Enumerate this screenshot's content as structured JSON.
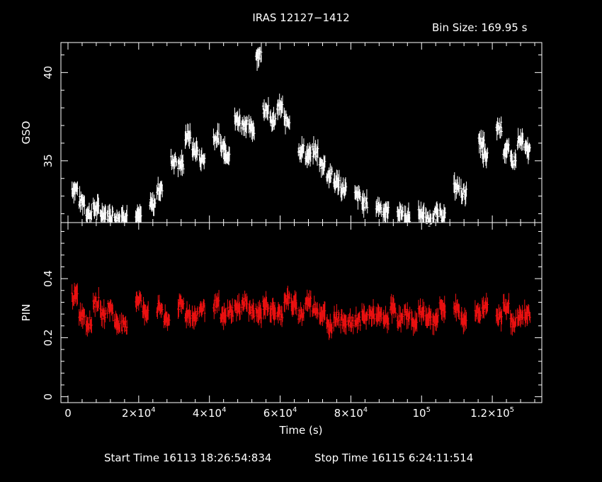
{
  "chart_data": {
    "type": "scatter",
    "title": "IRAS 12127−1412",
    "bin_size": "Bin Size: 169.95 s",
    "xlabel": "Time (s)",
    "xlim": [
      -2000,
      134000
    ],
    "x_ticks": [
      {
        "value": 0,
        "label": "0"
      },
      {
        "value": 20000,
        "label": "2×10",
        "exp": "4"
      },
      {
        "value": 40000,
        "label": "4×10",
        "exp": "4"
      },
      {
        "value": 60000,
        "label": "6×10",
        "exp": "4"
      },
      {
        "value": 80000,
        "label": "8×10",
        "exp": "4"
      },
      {
        "value": 100000,
        "label": "10",
        "exp": "5"
      },
      {
        "value": 120000,
        "label": "1.2×10",
        "exp": "5"
      }
    ],
    "panels": [
      {
        "name": "GSO",
        "ylabel": "GSO",
        "ylim": [
          31.5,
          41.7
        ],
        "y_ticks": [
          {
            "value": 35,
            "label": "35"
          },
          {
            "value": 40,
            "label": "40"
          }
        ],
        "color": "#ffffff",
        "points": [
          [
            2000,
            33.4
          ],
          [
            4000,
            32.7
          ],
          [
            6000,
            32.0
          ],
          [
            8000,
            32.3
          ],
          [
            10000,
            32.0
          ],
          [
            12000,
            31.9
          ],
          [
            14000,
            31.8
          ],
          [
            16000,
            31.9
          ],
          [
            20000,
            31.8
          ],
          [
            24000,
            32.5
          ],
          [
            26000,
            33.4
          ],
          [
            30000,
            35.0
          ],
          [
            32000,
            34.8
          ],
          [
            34000,
            36.4
          ],
          [
            36000,
            35.6
          ],
          [
            38000,
            35.1
          ],
          [
            42000,
            36.3
          ],
          [
            44000,
            35.8
          ],
          [
            45000,
            35.4
          ],
          [
            48000,
            37.3
          ],
          [
            50000,
            37.1
          ],
          [
            52000,
            36.8
          ],
          [
            54000,
            41.0
          ],
          [
            56000,
            38.0
          ],
          [
            58000,
            37.2
          ],
          [
            60000,
            38.0
          ],
          [
            62000,
            37.3
          ],
          [
            66000,
            35.6
          ],
          [
            68000,
            35.3
          ],
          [
            70000,
            35.5
          ],
          [
            72000,
            34.8
          ],
          [
            74000,
            34.2
          ],
          [
            76000,
            33.8
          ],
          [
            78000,
            33.4
          ],
          [
            82000,
            33.0
          ],
          [
            84000,
            32.6
          ],
          [
            88000,
            32.4
          ],
          [
            90000,
            32.1
          ],
          [
            94000,
            32.1
          ],
          [
            96000,
            31.8
          ],
          [
            100000,
            32.0
          ],
          [
            102000,
            31.6
          ],
          [
            104000,
            32.0
          ],
          [
            106000,
            31.9
          ],
          [
            110000,
            33.5
          ],
          [
            112000,
            33.2
          ],
          [
            117000,
            36.0
          ],
          [
            118000,
            35.2
          ],
          [
            122000,
            36.9
          ],
          [
            124000,
            35.6
          ],
          [
            126000,
            35.0
          ],
          [
            128000,
            36.1
          ],
          [
            130000,
            35.6
          ]
        ]
      },
      {
        "name": "PIN",
        "ylabel": "PIN",
        "ylim": [
          -0.02,
          0.59
        ],
        "y_ticks": [
          {
            "value": 0,
            "label": "0"
          },
          {
            "value": 0.2,
            "label": "0.2"
          },
          {
            "value": 0.4,
            "label": "0.4"
          }
        ],
        "color": "#ee1111",
        "points": [
          [
            2000,
            0.34
          ],
          [
            4000,
            0.28
          ],
          [
            6000,
            0.25
          ],
          [
            8000,
            0.32
          ],
          [
            10000,
            0.28
          ],
          [
            12000,
            0.3
          ],
          [
            14000,
            0.25
          ],
          [
            16000,
            0.24
          ],
          [
            20000,
            0.33
          ],
          [
            22000,
            0.29
          ],
          [
            26000,
            0.3
          ],
          [
            28000,
            0.26
          ],
          [
            32000,
            0.31
          ],
          [
            34000,
            0.28
          ],
          [
            36000,
            0.27
          ],
          [
            38000,
            0.3
          ],
          [
            42000,
            0.31
          ],
          [
            44000,
            0.27
          ],
          [
            46000,
            0.29
          ],
          [
            48000,
            0.3
          ],
          [
            50000,
            0.32
          ],
          [
            52000,
            0.29
          ],
          [
            54000,
            0.28
          ],
          [
            56000,
            0.31
          ],
          [
            58000,
            0.29
          ],
          [
            60000,
            0.28
          ],
          [
            62000,
            0.33
          ],
          [
            64000,
            0.31
          ],
          [
            66000,
            0.28
          ],
          [
            68000,
            0.32
          ],
          [
            70000,
            0.3
          ],
          [
            72000,
            0.28
          ],
          [
            74000,
            0.24
          ],
          [
            76000,
            0.27
          ],
          [
            78000,
            0.26
          ],
          [
            80000,
            0.25
          ],
          [
            82000,
            0.26
          ],
          [
            84000,
            0.27
          ],
          [
            86000,
            0.28
          ],
          [
            88000,
            0.27
          ],
          [
            90000,
            0.26
          ],
          [
            92000,
            0.3
          ],
          [
            94000,
            0.26
          ],
          [
            96000,
            0.28
          ],
          [
            98000,
            0.25
          ],
          [
            100000,
            0.29
          ],
          [
            102000,
            0.27
          ],
          [
            104000,
            0.26
          ],
          [
            106000,
            0.3
          ],
          [
            110000,
            0.3
          ],
          [
            112000,
            0.26
          ],
          [
            116000,
            0.29
          ],
          [
            118000,
            0.3
          ],
          [
            122000,
            0.27
          ],
          [
            124000,
            0.31
          ],
          [
            126000,
            0.25
          ],
          [
            128000,
            0.27
          ],
          [
            130000,
            0.28
          ]
        ]
      }
    ]
  },
  "footer": {
    "start": "Start Time 16113 18:26:54:834",
    "stop": "Stop Time 16115  6:24:11:514"
  }
}
